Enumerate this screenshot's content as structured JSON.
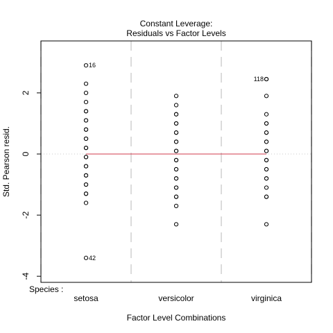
{
  "chart_data": {
    "type": "scatter",
    "title_line1": "Constant Leverage:",
    "title_line2": "Residuals vs Factor Levels",
    "xlabel": "Factor Level Combinations",
    "ylabel": "Std. Pearson resid.",
    "factor_label": "Species :",
    "categories": [
      "setosa",
      "versicolor",
      "virginica"
    ],
    "xlim": [
      0.5,
      3.5
    ],
    "ylim": [
      -4.2,
      3.7
    ],
    "yticks": [
      -4,
      -2,
      0,
      2
    ],
    "ytick_labels": [
      "-4",
      "-2",
      "0",
      "2"
    ],
    "reference_line": {
      "y": 0,
      "style": "dotted",
      "color": "#c8c8c8"
    },
    "fit_line": {
      "y": 0,
      "color": "#d2384b"
    },
    "group_separators": [
      0.5,
      1.5,
      2.5,
      3.5
    ],
    "series": [
      {
        "name": "setosa",
        "x": 1,
        "values": [
          2.9,
          2.3,
          2.0,
          1.7,
          1.4,
          1.4,
          1.1,
          1.1,
          0.8,
          0.8,
          0.5,
          0.5,
          0.2,
          0.2,
          -0.1,
          -0.1,
          -0.4,
          -0.4,
          -0.7,
          -0.7,
          -1.0,
          -1.0,
          -1.3,
          -1.3,
          -1.6,
          -3.4
        ]
      },
      {
        "name": "versicolor",
        "x": 2,
        "values": [
          1.9,
          1.6,
          1.3,
          1.3,
          1.0,
          1.0,
          0.7,
          0.7,
          0.4,
          0.4,
          0.1,
          0.1,
          -0.2,
          -0.2,
          -0.5,
          -0.5,
          -0.8,
          -0.8,
          -1.1,
          -1.1,
          -1.4,
          -1.4,
          -1.7,
          -2.3
        ]
      },
      {
        "name": "virginica",
        "x": 3,
        "values": [
          2.45,
          2.45,
          1.9,
          1.3,
          1.0,
          1.0,
          0.7,
          0.7,
          0.4,
          0.4,
          0.1,
          0.1,
          -0.2,
          -0.2,
          -0.5,
          -0.5,
          -0.8,
          -0.8,
          -1.1,
          -1.4,
          -1.4,
          -2.3
        ]
      }
    ],
    "annotations": [
      {
        "label": "16",
        "x": 1,
        "y": 2.9,
        "side": "right"
      },
      {
        "label": "42",
        "x": 1,
        "y": -3.4,
        "side": "right"
      },
      {
        "label": "118",
        "x": 3,
        "y": 2.45,
        "side": "left"
      }
    ]
  }
}
